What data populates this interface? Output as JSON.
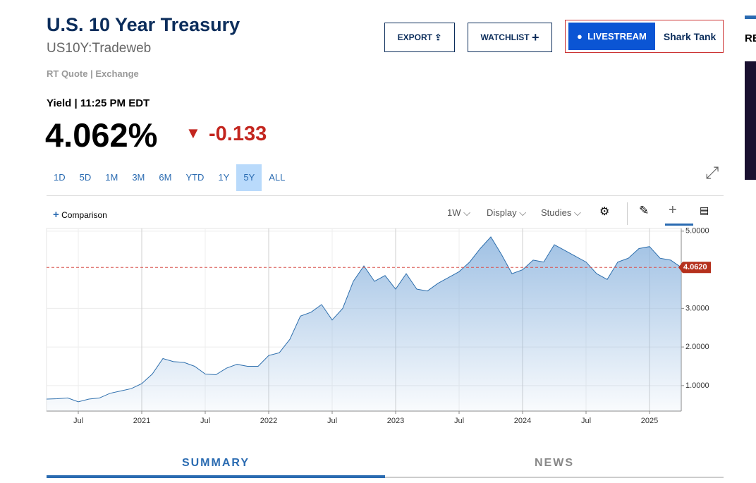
{
  "header": {
    "title": "U.S. 10 Year Treasury",
    "symbol": "US10Y:Tradeweb",
    "quote_source": "RT Quote | Exchange",
    "quote_label": "Yield | 11:25 PM EDT",
    "price": "4.062%",
    "change": "-0.133"
  },
  "buttons": {
    "export": "EXPORT",
    "watchlist": "WATCHLIST",
    "livestream": "LIVESTREAM",
    "show": "Shark Tank"
  },
  "side_heading": "RE",
  "ranges": [
    "1D",
    "5D",
    "1M",
    "3M",
    "6M",
    "YTD",
    "1Y",
    "5Y",
    "ALL"
  ],
  "active_range": "5Y",
  "toolbar": {
    "comparison": "Comparison",
    "interval": "1W",
    "display": "Display",
    "studies": "Studies"
  },
  "tabs": [
    "SUMMARY",
    "NEWS"
  ],
  "chart_data": {
    "type": "area",
    "x": [
      "2020-04",
      "2020-05",
      "2020-06",
      "2020-07",
      "2020-08",
      "2020-09",
      "2020-10",
      "2020-11",
      "2020-12",
      "2021-01",
      "2021-02",
      "2021-03",
      "2021-04",
      "2021-05",
      "2021-06",
      "2021-07",
      "2021-08",
      "2021-09",
      "2021-10",
      "2021-11",
      "2021-12",
      "2022-01",
      "2022-02",
      "2022-03",
      "2022-04",
      "2022-05",
      "2022-06",
      "2022-07",
      "2022-08",
      "2022-09",
      "2022-10",
      "2022-11",
      "2022-12",
      "2023-01",
      "2023-02",
      "2023-03",
      "2023-04",
      "2023-05",
      "2023-06",
      "2023-07",
      "2023-08",
      "2023-09",
      "2023-10",
      "2023-11",
      "2023-12",
      "2024-01",
      "2024-02",
      "2024-03",
      "2024-04",
      "2024-05",
      "2024-06",
      "2024-07",
      "2024-08",
      "2024-09",
      "2024-10",
      "2024-11",
      "2024-12",
      "2025-01",
      "2025-02",
      "2025-03",
      "2025-04"
    ],
    "series": [
      {
        "name": "US10Y",
        "color": "#2e6fad",
        "values": [
          0.65,
          0.66,
          0.68,
          0.58,
          0.65,
          0.68,
          0.8,
          0.86,
          0.92,
          1.05,
          1.3,
          1.7,
          1.62,
          1.6,
          1.5,
          1.3,
          1.28,
          1.45,
          1.55,
          1.5,
          1.5,
          1.78,
          1.85,
          2.2,
          2.8,
          2.9,
          3.1,
          2.7,
          3.0,
          3.7,
          4.1,
          3.7,
          3.85,
          3.5,
          3.9,
          3.5,
          3.45,
          3.65,
          3.8,
          3.95,
          4.2,
          4.55,
          4.85,
          4.4,
          3.9,
          4.0,
          4.25,
          4.2,
          4.65,
          4.5,
          4.35,
          4.2,
          3.9,
          3.75,
          4.2,
          4.3,
          4.55,
          4.6,
          4.3,
          4.25,
          4.06
        ]
      }
    ],
    "last_value": {
      "value": 4.062,
      "label": "4.0620"
    },
    "xlim": [
      "2020-04",
      "2025-04"
    ],
    "xticks": [
      {
        "value": "2020-07",
        "label": "Jul"
      },
      {
        "value": "2021-01",
        "label": "2021"
      },
      {
        "value": "2021-07",
        "label": "Jul"
      },
      {
        "value": "2022-01",
        "label": "2022"
      },
      {
        "value": "2022-07",
        "label": "Jul"
      },
      {
        "value": "2023-01",
        "label": "2023"
      },
      {
        "value": "2023-07",
        "label": "Jul"
      },
      {
        "value": "2024-01",
        "label": "2024"
      },
      {
        "value": "2024-07",
        "label": "Jul"
      },
      {
        "value": "2025-01",
        "label": "2025"
      }
    ],
    "ylim": [
      0.34,
      5.07
    ],
    "yticks": [
      {
        "value": 1,
        "label": "1.0000"
      },
      {
        "value": 2,
        "label": "2.0000"
      },
      {
        "value": 3,
        "label": "3.0000"
      },
      {
        "value": 5,
        "label": "5.0000"
      }
    ],
    "grid": true
  }
}
